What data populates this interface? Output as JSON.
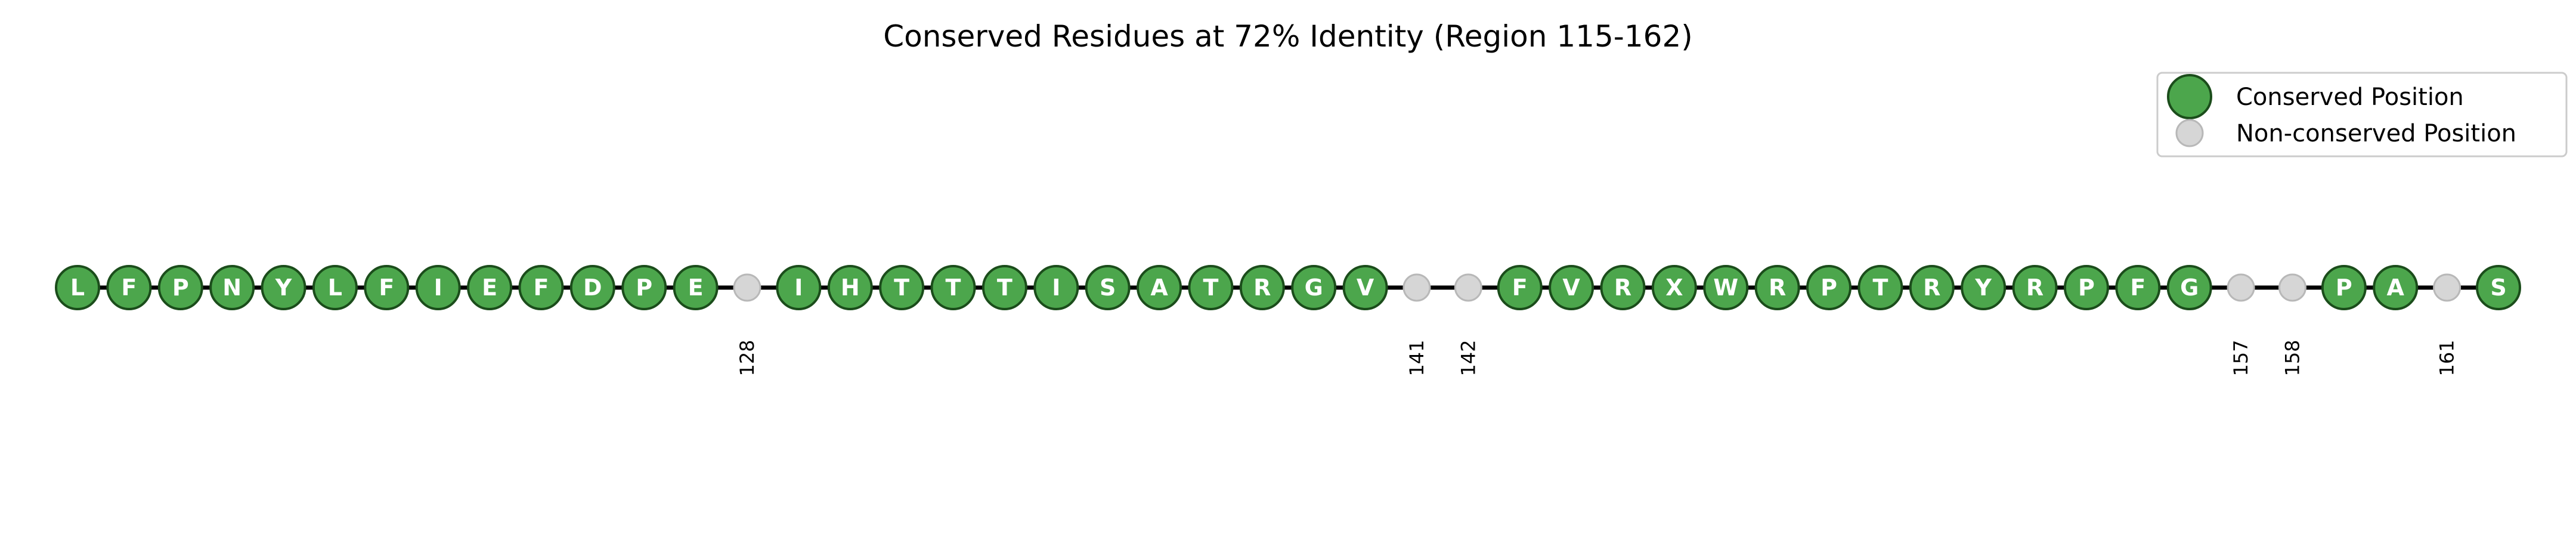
{
  "chart_data": {
    "type": "scatter",
    "title": "Conserved Residues at 72% Identity (Region 115-162)",
    "x_range": [
      115,
      162
    ],
    "positions": [
      115,
      116,
      117,
      118,
      119,
      120,
      121,
      122,
      123,
      124,
      125,
      126,
      127,
      128,
      129,
      130,
      131,
      132,
      133,
      134,
      135,
      136,
      137,
      138,
      139,
      140,
      141,
      142,
      143,
      144,
      145,
      146,
      147,
      148,
      149,
      150,
      151,
      152,
      153,
      154,
      155,
      156,
      157,
      158,
      159,
      160,
      161,
      162
    ],
    "residues": [
      "L",
      "F",
      "P",
      "N",
      "Y",
      "L",
      "F",
      "I",
      "E",
      "F",
      "D",
      "P",
      "E",
      "",
      "I",
      "H",
      "T",
      "T",
      "T",
      "I",
      "S",
      "A",
      "T",
      "R",
      "G",
      "V",
      "",
      "",
      "F",
      "V",
      "R",
      "X",
      "W",
      "R",
      "P",
      "T",
      "R",
      "Y",
      "R",
      "P",
      "F",
      "G",
      "",
      "",
      "P",
      "A",
      "",
      "S"
    ],
    "conserved": [
      true,
      true,
      true,
      true,
      true,
      true,
      true,
      true,
      true,
      true,
      true,
      true,
      true,
      false,
      true,
      true,
      true,
      true,
      true,
      true,
      true,
      true,
      true,
      true,
      true,
      true,
      false,
      false,
      true,
      true,
      true,
      true,
      true,
      true,
      true,
      true,
      true,
      true,
      true,
      true,
      true,
      true,
      false,
      false,
      true,
      true,
      false,
      true
    ],
    "position_labels": [
      "128",
      "141",
      "142",
      "157",
      "158",
      "161"
    ],
    "legend": {
      "placement": "top-right",
      "entries": [
        "Conserved Position",
        "Non-conserved Position"
      ]
    },
    "colors": {
      "conserved_fill": "#4ca64c",
      "conserved_edge": "#1b4d1b",
      "nonconserved_fill": "#d6d6d6",
      "nonconserved_edge": "#b8b8b8",
      "line": "#000000"
    },
    "grid": false,
    "axes_visible": false
  }
}
